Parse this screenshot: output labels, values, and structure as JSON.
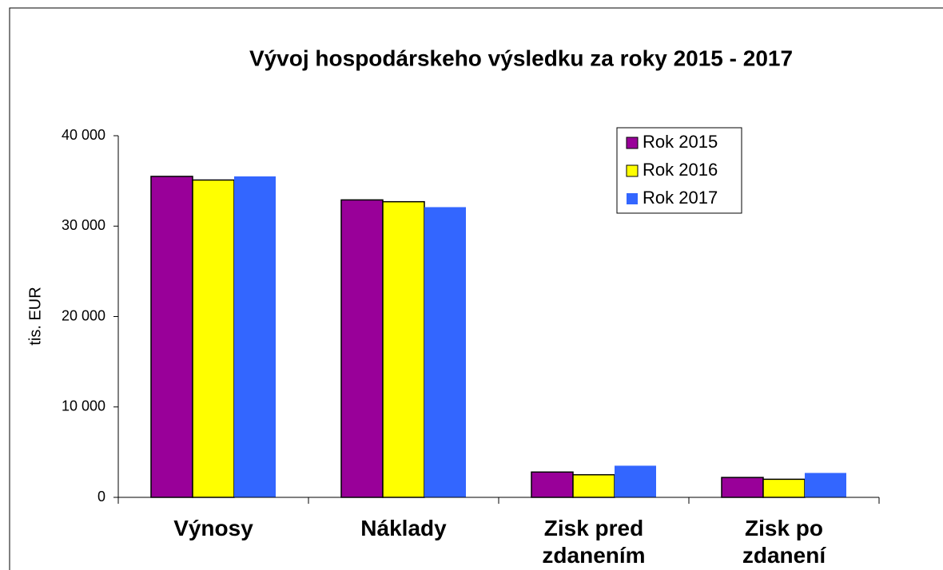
{
  "chart_data": {
    "type": "bar",
    "title": "Vývoj hospodárskeho výsledku za roky 2015 - 2017",
    "ylabel": "tis. EUR",
    "categories": [
      "Výnosy",
      "Náklady",
      "Zisk pred zdanením",
      "Zisk po zdanení"
    ],
    "series": [
      {
        "name": "Rok 2015",
        "color": "#990099",
        "outline": true,
        "values": [
          35500,
          32900,
          2800,
          2200
        ]
      },
      {
        "name": "Rok 2016",
        "color": "#ffff00",
        "outline": true,
        "values": [
          35100,
          32700,
          2500,
          2000
        ]
      },
      {
        "name": "Rok 2017",
        "color": "#3366ff",
        "outline": false,
        "values": [
          35500,
          32100,
          3500,
          2700
        ]
      }
    ],
    "ylim": [
      0,
      40000
    ],
    "yticks": [
      0,
      {
        "value": 10000,
        "label": "10 000"
      },
      {
        "value": 20000,
        "label": "20 000"
      },
      {
        "value": 30000,
        "label": "30 000"
      },
      {
        "value": 40000,
        "label": "40 000"
      }
    ],
    "grid": false,
    "legend": "upper right"
  }
}
